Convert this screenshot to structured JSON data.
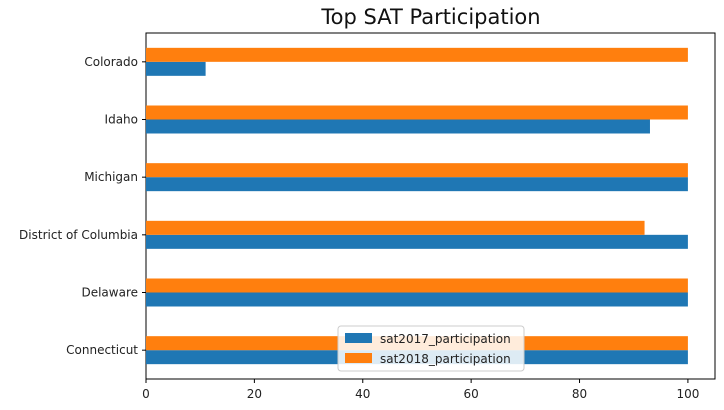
{
  "chart_data": {
    "type": "bar",
    "orientation": "horizontal",
    "title": "Top SAT Participation",
    "xlabel": "",
    "ylabel": "",
    "categories": [
      "Connecticut",
      "Delaware",
      "District of Columbia",
      "Michigan",
      "Idaho",
      "Colorado"
    ],
    "series": [
      {
        "name": "sat2017_participation",
        "color": "#1f77b4",
        "values": [
          100,
          100,
          100,
          100,
          93,
          11
        ]
      },
      {
        "name": "sat2018_participation",
        "color": "#ff7f0e",
        "values": [
          100,
          100,
          92,
          100,
          100,
          100
        ]
      }
    ],
    "xlim": [
      0,
      105
    ],
    "xticks": [
      "0",
      "20",
      "40",
      "60",
      "80",
      "100"
    ],
    "grid": false,
    "legend_position": "lower-center"
  }
}
